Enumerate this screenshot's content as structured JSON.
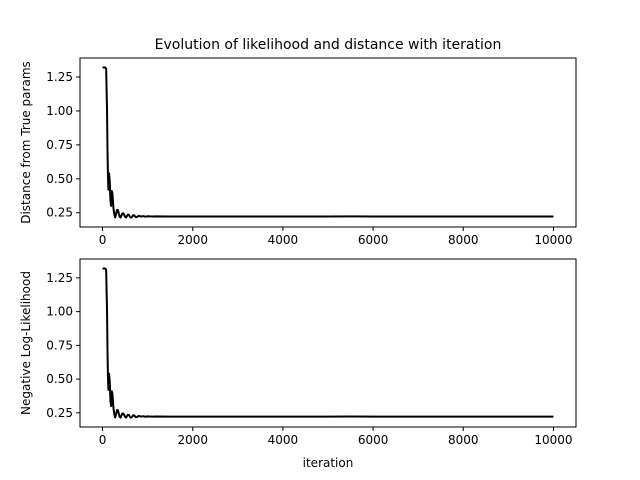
{
  "figure": {
    "title": "Evolution of likelihood and distance with iteration"
  },
  "chart_data": [
    {
      "type": "line",
      "title": "Evolution of likelihood and distance with iteration",
      "xlabel": "",
      "ylabel": "Distance from True params",
      "xlim": [
        -500,
        10500
      ],
      "ylim": [
        0.145,
        1.39
      ],
      "xticks": [
        0,
        2000,
        4000,
        6000,
        8000,
        10000
      ],
      "xtick_labels": [
        "0",
        "2000",
        "4000",
        "6000",
        "8000",
        "10000"
      ],
      "yticks": [
        0.25,
        0.5,
        0.75,
        1.0,
        1.25
      ],
      "ytick_labels": [
        "0.25",
        "0.50",
        "0.75",
        "1.00",
        "1.25"
      ],
      "grid": false,
      "series": [
        {
          "color": "#000000",
          "x": [
            0,
            20,
            60,
            80,
            100,
            110,
            120,
            130,
            145,
            160,
            175,
            190,
            205,
            220,
            240,
            260,
            280,
            300,
            320,
            340,
            360,
            380,
            400,
            420,
            440,
            460,
            480,
            500,
            520,
            540,
            560,
            580,
            600,
            620,
            640,
            660,
            680,
            700,
            720,
            740,
            760,
            780,
            800,
            850,
            900,
            950,
            1000,
            1100,
            1200,
            1500,
            2000,
            3000,
            4000,
            5000,
            5500,
            6000,
            6500,
            7000,
            8000,
            9000,
            10000
          ],
          "y": [
            1.32,
            1.32,
            1.32,
            1.31,
            1.0,
            0.7,
            0.52,
            0.42,
            0.54,
            0.48,
            0.34,
            0.3,
            0.41,
            0.39,
            0.29,
            0.24,
            0.215,
            0.24,
            0.27,
            0.27,
            0.245,
            0.22,
            0.215,
            0.23,
            0.245,
            0.245,
            0.235,
            0.22,
            0.215,
            0.225,
            0.235,
            0.235,
            0.225,
            0.215,
            0.215,
            0.222,
            0.232,
            0.232,
            0.223,
            0.218,
            0.218,
            0.222,
            0.228,
            0.222,
            0.225,
            0.221,
            0.224,
            0.222,
            0.223,
            0.222,
            0.222,
            0.222,
            0.222,
            0.222,
            0.223,
            0.222,
            0.222,
            0.222,
            0.222,
            0.222,
            0.222
          ]
        }
      ]
    },
    {
      "type": "line",
      "title": "",
      "xlabel": "iteration",
      "ylabel": "Negative Log-Likelihood",
      "xlim": [
        -500,
        10500
      ],
      "ylim": [
        0.145,
        1.39
      ],
      "xticks": [
        0,
        2000,
        4000,
        6000,
        8000,
        10000
      ],
      "xtick_labels": [
        "0",
        "2000",
        "4000",
        "6000",
        "8000",
        "10000"
      ],
      "yticks": [
        0.25,
        0.5,
        0.75,
        1.0,
        1.25
      ],
      "ytick_labels": [
        "0.25",
        "0.50",
        "0.75",
        "1.00",
        "1.25"
      ],
      "grid": false,
      "series": [
        {
          "color": "#000000",
          "x": [
            0,
            20,
            60,
            80,
            100,
            110,
            120,
            130,
            145,
            160,
            175,
            190,
            205,
            220,
            240,
            260,
            280,
            300,
            320,
            340,
            360,
            380,
            400,
            420,
            440,
            460,
            480,
            500,
            520,
            540,
            560,
            580,
            600,
            620,
            640,
            660,
            680,
            700,
            720,
            740,
            760,
            780,
            800,
            850,
            900,
            950,
            1000,
            1100,
            1200,
            1500,
            2000,
            3000,
            4000,
            5000,
            5500,
            6000,
            6500,
            7000,
            8000,
            9000,
            10000
          ],
          "y": [
            1.32,
            1.32,
            1.32,
            1.31,
            1.0,
            0.7,
            0.52,
            0.42,
            0.54,
            0.48,
            0.34,
            0.3,
            0.41,
            0.39,
            0.29,
            0.24,
            0.215,
            0.24,
            0.27,
            0.27,
            0.245,
            0.22,
            0.215,
            0.23,
            0.245,
            0.245,
            0.235,
            0.22,
            0.215,
            0.225,
            0.235,
            0.235,
            0.225,
            0.215,
            0.215,
            0.222,
            0.232,
            0.232,
            0.223,
            0.218,
            0.218,
            0.222,
            0.228,
            0.222,
            0.225,
            0.221,
            0.224,
            0.222,
            0.223,
            0.222,
            0.222,
            0.222,
            0.222,
            0.222,
            0.223,
            0.222,
            0.222,
            0.222,
            0.222,
            0.222,
            0.222
          ]
        }
      ]
    }
  ]
}
